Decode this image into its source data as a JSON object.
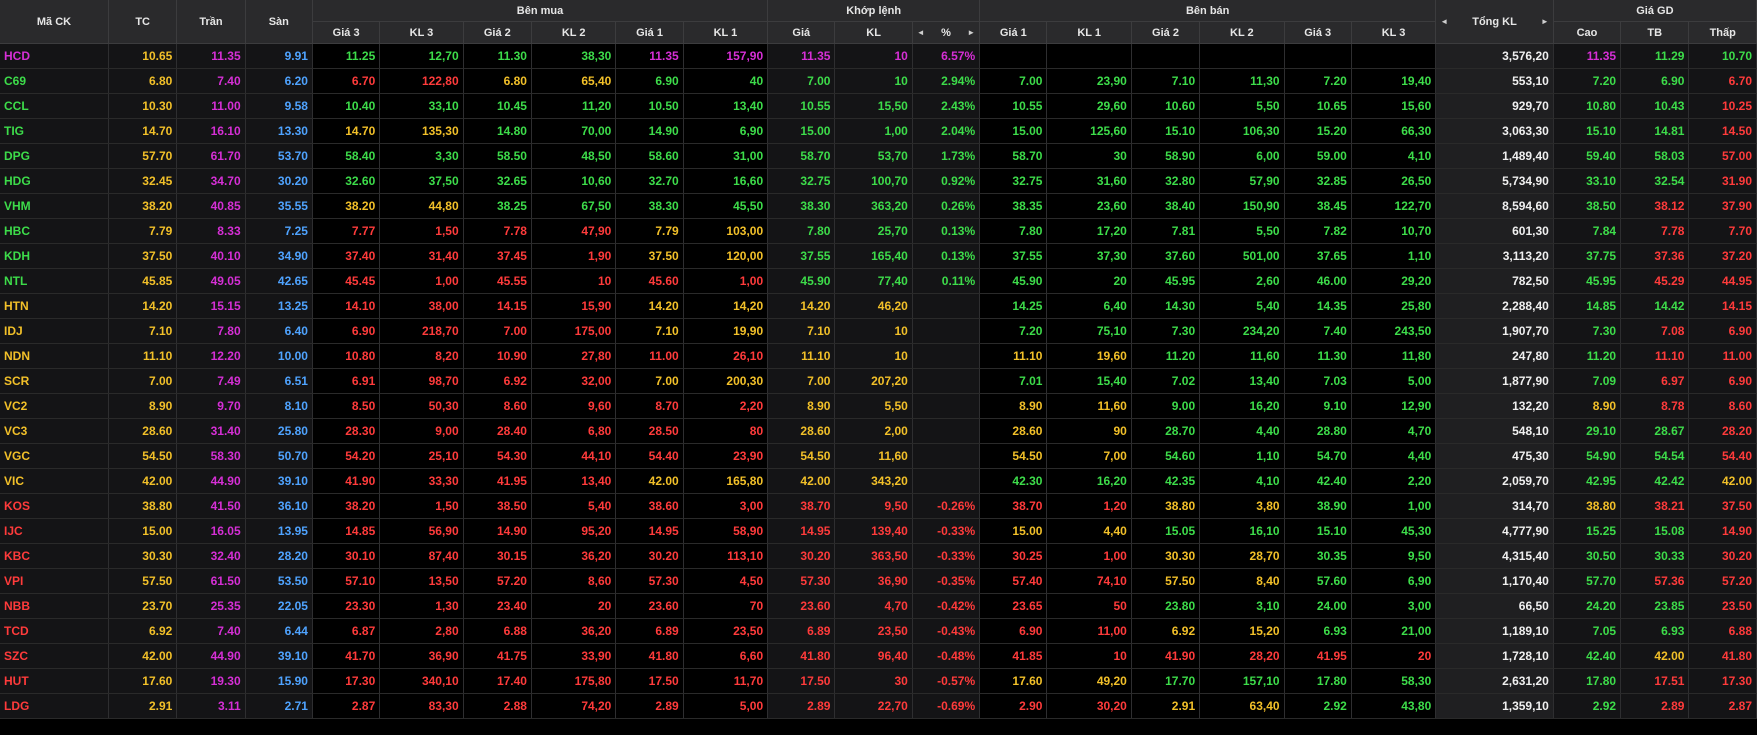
{
  "colors": {
    "green": "#3ddc4a",
    "red": "#ff3b3b",
    "yellow": "#f2c029",
    "purple": "#d62fd6",
    "blue": "#4fa3ff"
  },
  "header": {
    "groups": {
      "buy": "Bên mua",
      "match": "Khớp lệnh",
      "sell": "Bên bán",
      "totals": "Giá GD"
    },
    "cols": {
      "symbol": "Mã CK",
      "ref": "TC",
      "ceil": "Trần",
      "floor": "Sàn",
      "bp3": "Giá 3",
      "bv3": "KL 3",
      "bp2": "Giá 2",
      "bv2": "KL 2",
      "bp1": "Giá 1",
      "bv1": "KL 1",
      "mp": "Giá",
      "mv": "KL",
      "mpct": "%",
      "sp1": "Giá 1",
      "sv1": "KL 1",
      "sp2": "Giá 2",
      "sv2": "KL 2",
      "sp3": "Giá 3",
      "sv3": "KL 3",
      "total": "Tổng KL",
      "high": "Cao",
      "avg": "TB",
      "low": "Thấp"
    },
    "nav_left": "◄",
    "nav_right": "►"
  },
  "rows": [
    {
      "s": "HCD",
      "c": "P",
      "tc": "10.65",
      "tr": "11.35",
      "sa": "9.91",
      "b3": "11.25",
      "b3c": "G",
      "v3": "12,70",
      "b2": "11.30",
      "b2c": "G",
      "v2": "38,30",
      "b1": "11.35",
      "b1c": "P",
      "v1": "157,90",
      "mp": "11.35",
      "mc": "P",
      "mv": "10",
      "pct": "6.57%",
      "s1": "",
      "s1c": "G",
      "w1": "",
      "s2": "",
      "s2c": "G",
      "w2": "",
      "s3": "",
      "s3c": "G",
      "w3": "",
      "tot": "3,576,20",
      "hi": "11.35",
      "hic": "P",
      "av": "11.29",
      "avc": "G",
      "lo": "10.70",
      "loc": "G"
    },
    {
      "s": "C69",
      "c": "G",
      "tc": "6.80",
      "tr": "7.40",
      "sa": "6.20",
      "b3": "6.70",
      "b3c": "R",
      "v3": "122,80",
      "b2": "6.80",
      "b2c": "Y",
      "v2": "65,40",
      "b1": "6.90",
      "b1c": "G",
      "v1": "40",
      "mp": "7.00",
      "mc": "G",
      "mv": "10",
      "pct": "2.94%",
      "s1": "7.00",
      "s1c": "G",
      "w1": "23,90",
      "s2": "7.10",
      "s2c": "G",
      "w2": "11,30",
      "s3": "7.20",
      "s3c": "G",
      "w3": "19,40",
      "tot": "553,10",
      "hi": "7.20",
      "hic": "G",
      "av": "6.90",
      "avc": "G",
      "lo": "6.70",
      "loc": "R"
    },
    {
      "s": "CCL",
      "c": "G",
      "tc": "10.30",
      "tr": "11.00",
      "sa": "9.58",
      "b3": "10.40",
      "b3c": "G",
      "v3": "33,10",
      "b2": "10.45",
      "b2c": "G",
      "v2": "11,20",
      "b1": "10.50",
      "b1c": "G",
      "v1": "13,40",
      "mp": "10.55",
      "mc": "G",
      "mv": "15,50",
      "pct": "2.43%",
      "s1": "10.55",
      "s1c": "G",
      "w1": "29,60",
      "s2": "10.60",
      "s2c": "G",
      "w2": "5,50",
      "s3": "10.65",
      "s3c": "G",
      "w3": "15,60",
      "tot": "929,70",
      "hi": "10.80",
      "hic": "G",
      "av": "10.43",
      "avc": "G",
      "lo": "10.25",
      "loc": "R"
    },
    {
      "s": "TIG",
      "c": "G",
      "tc": "14.70",
      "tr": "16.10",
      "sa": "13.30",
      "b3": "14.70",
      "b3c": "Y",
      "v3": "135,30",
      "b2": "14.80",
      "b2c": "G",
      "v2": "70,00",
      "b1": "14.90",
      "b1c": "G",
      "v1": "6,90",
      "mp": "15.00",
      "mc": "G",
      "mv": "1,00",
      "pct": "2.04%",
      "s1": "15.00",
      "s1c": "G",
      "w1": "125,60",
      "s2": "15.10",
      "s2c": "G",
      "w2": "106,30",
      "s3": "15.20",
      "s3c": "G",
      "w3": "66,30",
      "tot": "3,063,30",
      "hi": "15.10",
      "hic": "G",
      "av": "14.81",
      "avc": "G",
      "lo": "14.50",
      "loc": "R"
    },
    {
      "s": "DPG",
      "c": "G",
      "tc": "57.70",
      "tr": "61.70",
      "sa": "53.70",
      "b3": "58.40",
      "b3c": "G",
      "v3": "3,30",
      "b2": "58.50",
      "b2c": "G",
      "v2": "48,50",
      "b1": "58.60",
      "b1c": "G",
      "v1": "31,00",
      "mp": "58.70",
      "mc": "G",
      "mv": "53,70",
      "pct": "1.73%",
      "s1": "58.70",
      "s1c": "G",
      "w1": "30",
      "s2": "58.90",
      "s2c": "G",
      "w2": "6,00",
      "s3": "59.00",
      "s3c": "G",
      "w3": "4,10",
      "tot": "1,489,40",
      "hi": "59.40",
      "hic": "G",
      "av": "58.03",
      "avc": "G",
      "lo": "57.00",
      "loc": "R"
    },
    {
      "s": "HDG",
      "c": "G",
      "tc": "32.45",
      "tr": "34.70",
      "sa": "30.20",
      "b3": "32.60",
      "b3c": "G",
      "v3": "37,50",
      "b2": "32.65",
      "b2c": "G",
      "v2": "10,60",
      "b1": "32.70",
      "b1c": "G",
      "v1": "16,60",
      "mp": "32.75",
      "mc": "G",
      "mv": "100,70",
      "pct": "0.92%",
      "s1": "32.75",
      "s1c": "G",
      "w1": "31,60",
      "s2": "32.80",
      "s2c": "G",
      "w2": "57,90",
      "s3": "32.85",
      "s3c": "G",
      "w3": "26,50",
      "tot": "5,734,90",
      "hi": "33.10",
      "hic": "G",
      "av": "32.54",
      "avc": "G",
      "lo": "31.90",
      "loc": "R"
    },
    {
      "s": "VHM",
      "c": "G",
      "tc": "38.20",
      "tr": "40.85",
      "sa": "35.55",
      "b3": "38.20",
      "b3c": "Y",
      "v3": "44,80",
      "b2": "38.25",
      "b2c": "G",
      "v2": "67,50",
      "b1": "38.30",
      "b1c": "G",
      "v1": "45,50",
      "mp": "38.30",
      "mc": "G",
      "mv": "363,20",
      "pct": "0.26%",
      "s1": "38.35",
      "s1c": "G",
      "w1": "23,60",
      "s2": "38.40",
      "s2c": "G",
      "w2": "150,90",
      "s3": "38.45",
      "s3c": "G",
      "w3": "122,70",
      "tot": "8,594,60",
      "hi": "38.50",
      "hic": "G",
      "av": "38.12",
      "avc": "R",
      "lo": "37.90",
      "loc": "R"
    },
    {
      "s": "HBC",
      "c": "G",
      "tc": "7.79",
      "tr": "8.33",
      "sa": "7.25",
      "b3": "7.77",
      "b3c": "R",
      "v3": "1,50",
      "b2": "7.78",
      "b2c": "R",
      "v2": "47,90",
      "b1": "7.79",
      "b1c": "Y",
      "v1": "103,00",
      "mp": "7.80",
      "mc": "G",
      "mv": "25,70",
      "pct": "0.13%",
      "s1": "7.80",
      "s1c": "G",
      "w1": "17,20",
      "s2": "7.81",
      "s2c": "G",
      "w2": "5,50",
      "s3": "7.82",
      "s3c": "G",
      "w3": "10,70",
      "tot": "601,30",
      "hi": "7.84",
      "hic": "G",
      "av": "7.78",
      "avc": "R",
      "lo": "7.70",
      "loc": "R"
    },
    {
      "s": "KDH",
      "c": "G",
      "tc": "37.50",
      "tr": "40.10",
      "sa": "34.90",
      "b3": "37.40",
      "b3c": "R",
      "v3": "31,40",
      "b2": "37.45",
      "b2c": "R",
      "v2": "1,90",
      "b1": "37.50",
      "b1c": "Y",
      "v1": "120,00",
      "mp": "37.55",
      "mc": "G",
      "mv": "165,40",
      "pct": "0.13%",
      "s1": "37.55",
      "s1c": "G",
      "w1": "37,30",
      "s2": "37.60",
      "s2c": "G",
      "w2": "501,00",
      "s3": "37.65",
      "s3c": "G",
      "w3": "1,10",
      "tot": "3,113,20",
      "hi": "37.75",
      "hic": "G",
      "av": "37.36",
      "avc": "R",
      "lo": "37.20",
      "loc": "R"
    },
    {
      "s": "NTL",
      "c": "G",
      "tc": "45.85",
      "tr": "49.05",
      "sa": "42.65",
      "b3": "45.45",
      "b3c": "R",
      "v3": "1,00",
      "b2": "45.55",
      "b2c": "R",
      "v2": "10",
      "b1": "45.60",
      "b1c": "R",
      "v1": "1,00",
      "mp": "45.90",
      "mc": "G",
      "mv": "77,40",
      "pct": "0.11%",
      "s1": "45.90",
      "s1c": "G",
      "w1": "20",
      "s2": "45.95",
      "s2c": "G",
      "w2": "2,60",
      "s3": "46.00",
      "s3c": "G",
      "w3": "29,20",
      "tot": "782,50",
      "hi": "45.95",
      "hic": "G",
      "av": "45.29",
      "avc": "R",
      "lo": "44.95",
      "loc": "R"
    },
    {
      "s": "HTN",
      "c": "Y",
      "tc": "14.20",
      "tr": "15.15",
      "sa": "13.25",
      "b3": "14.10",
      "b3c": "R",
      "v3": "38,00",
      "b2": "14.15",
      "b2c": "R",
      "v2": "15,90",
      "b1": "14.20",
      "b1c": "Y",
      "v1": "14,20",
      "mp": "14.20",
      "mc": "Y",
      "mv": "46,20",
      "pct": "",
      "s1": "14.25",
      "s1c": "G",
      "w1": "6,40",
      "s2": "14.30",
      "s2c": "G",
      "w2": "5,40",
      "s3": "14.35",
      "s3c": "G",
      "w3": "25,80",
      "tot": "2,288,40",
      "hi": "14.85",
      "hic": "G",
      "av": "14.42",
      "avc": "G",
      "lo": "14.15",
      "loc": "R"
    },
    {
      "s": "IDJ",
      "c": "Y",
      "tc": "7.10",
      "tr": "7.80",
      "sa": "6.40",
      "b3": "6.90",
      "b3c": "R",
      "v3": "218,70",
      "b2": "7.00",
      "b2c": "R",
      "v2": "175,00",
      "b1": "7.10",
      "b1c": "Y",
      "v1": "19,90",
      "mp": "7.10",
      "mc": "Y",
      "mv": "10",
      "pct": "",
      "s1": "7.20",
      "s1c": "G",
      "w1": "75,10",
      "s2": "7.30",
      "s2c": "G",
      "w2": "234,20",
      "s3": "7.40",
      "s3c": "G",
      "w3": "243,50",
      "tot": "1,907,70",
      "hi": "7.30",
      "hic": "G",
      "av": "7.08",
      "avc": "R",
      "lo": "6.90",
      "loc": "R"
    },
    {
      "s": "NDN",
      "c": "Y",
      "tc": "11.10",
      "tr": "12.20",
      "sa": "10.00",
      "b3": "10.80",
      "b3c": "R",
      "v3": "8,20",
      "b2": "10.90",
      "b2c": "R",
      "v2": "27,80",
      "b1": "11.00",
      "b1c": "R",
      "v1": "26,10",
      "mp": "11.10",
      "mc": "Y",
      "mv": "10",
      "pct": "",
      "s1": "11.10",
      "s1c": "Y",
      "w1": "19,60",
      "s2": "11.20",
      "s2c": "G",
      "w2": "11,60",
      "s3": "11.30",
      "s3c": "G",
      "w3": "11,80",
      "tot": "247,80",
      "hi": "11.20",
      "hic": "G",
      "av": "11.10",
      "avc": "R",
      "lo": "11.00",
      "loc": "R"
    },
    {
      "s": "SCR",
      "c": "Y",
      "tc": "7.00",
      "tr": "7.49",
      "sa": "6.51",
      "b3": "6.91",
      "b3c": "R",
      "v3": "98,70",
      "b2": "6.92",
      "b2c": "R",
      "v2": "32,00",
      "b1": "7.00",
      "b1c": "Y",
      "v1": "200,30",
      "mp": "7.00",
      "mc": "Y",
      "mv": "207,20",
      "pct": "",
      "s1": "7.01",
      "s1c": "G",
      "w1": "15,40",
      "s2": "7.02",
      "s2c": "G",
      "w2": "13,40",
      "s3": "7.03",
      "s3c": "G",
      "w3": "5,00",
      "tot": "1,877,90",
      "hi": "7.09",
      "hic": "G",
      "av": "6.97",
      "avc": "R",
      "lo": "6.90",
      "loc": "R"
    },
    {
      "s": "VC2",
      "c": "Y",
      "tc": "8.90",
      "tr": "9.70",
      "sa": "8.10",
      "b3": "8.50",
      "b3c": "R",
      "v3": "50,30",
      "b2": "8.60",
      "b2c": "R",
      "v2": "9,60",
      "b1": "8.70",
      "b1c": "R",
      "v1": "2,20",
      "mp": "8.90",
      "mc": "Y",
      "mv": "5,50",
      "pct": "",
      "s1": "8.90",
      "s1c": "Y",
      "w1": "11,60",
      "s2": "9.00",
      "s2c": "G",
      "w2": "16,20",
      "s3": "9.10",
      "s3c": "G",
      "w3": "12,90",
      "tot": "132,20",
      "hi": "8.90",
      "hic": "Y",
      "av": "8.78",
      "avc": "R",
      "lo": "8.60",
      "loc": "R"
    },
    {
      "s": "VC3",
      "c": "Y",
      "tc": "28.60",
      "tr": "31.40",
      "sa": "25.80",
      "b3": "28.30",
      "b3c": "R",
      "v3": "9,00",
      "b2": "28.40",
      "b2c": "R",
      "v2": "6,80",
      "b1": "28.50",
      "b1c": "R",
      "v1": "80",
      "mp": "28.60",
      "mc": "Y",
      "mv": "2,00",
      "pct": "",
      "s1": "28.60",
      "s1c": "Y",
      "w1": "90",
      "s2": "28.70",
      "s2c": "G",
      "w2": "4,40",
      "s3": "28.80",
      "s3c": "G",
      "w3": "4,70",
      "tot": "548,10",
      "hi": "29.10",
      "hic": "G",
      "av": "28.67",
      "avc": "G",
      "lo": "28.20",
      "loc": "R"
    },
    {
      "s": "VGC",
      "c": "Y",
      "tc": "54.50",
      "tr": "58.30",
      "sa": "50.70",
      "b3": "54.20",
      "b3c": "R",
      "v3": "25,10",
      "b2": "54.30",
      "b2c": "R",
      "v2": "44,10",
      "b1": "54.40",
      "b1c": "R",
      "v1": "23,90",
      "mp": "54.50",
      "mc": "Y",
      "mv": "11,60",
      "pct": "",
      "s1": "54.50",
      "s1c": "Y",
      "w1": "7,00",
      "s2": "54.60",
      "s2c": "G",
      "w2": "1,10",
      "s3": "54.70",
      "s3c": "G",
      "w3": "4,40",
      "tot": "475,30",
      "hi": "54.90",
      "hic": "G",
      "av": "54.54",
      "avc": "G",
      "lo": "54.40",
      "loc": "R"
    },
    {
      "s": "VIC",
      "c": "Y",
      "tc": "42.00",
      "tr": "44.90",
      "sa": "39.10",
      "b3": "41.90",
      "b3c": "R",
      "v3": "33,30",
      "b2": "41.95",
      "b2c": "R",
      "v2": "13,40",
      "b1": "42.00",
      "b1c": "Y",
      "v1": "165,80",
      "mp": "42.00",
      "mc": "Y",
      "mv": "343,20",
      "pct": "",
      "s1": "42.30",
      "s1c": "G",
      "w1": "16,20",
      "s2": "42.35",
      "s2c": "G",
      "w2": "4,10",
      "s3": "42.40",
      "s3c": "G",
      "w3": "2,20",
      "tot": "2,059,70",
      "hi": "42.95",
      "hic": "G",
      "av": "42.42",
      "avc": "G",
      "lo": "42.00",
      "loc": "Y"
    },
    {
      "s": "KOS",
      "c": "R",
      "tc": "38.80",
      "tr": "41.50",
      "sa": "36.10",
      "b3": "38.20",
      "b3c": "R",
      "v3": "1,50",
      "b2": "38.50",
      "b2c": "R",
      "v2": "5,40",
      "b1": "38.60",
      "b1c": "R",
      "v1": "3,00",
      "mp": "38.70",
      "mc": "R",
      "mv": "9,50",
      "pct": "-0.26%",
      "s1": "38.70",
      "s1c": "R",
      "w1": "1,20",
      "s2": "38.80",
      "s2c": "Y",
      "w2": "3,80",
      "s3": "38.90",
      "s3c": "G",
      "w3": "1,00",
      "tot": "314,70",
      "hi": "38.80",
      "hic": "Y",
      "av": "38.21",
      "avc": "R",
      "lo": "37.50",
      "loc": "R"
    },
    {
      "s": "IJC",
      "c": "R",
      "tc": "15.00",
      "tr": "16.05",
      "sa": "13.95",
      "b3": "14.85",
      "b3c": "R",
      "v3": "56,90",
      "b2": "14.90",
      "b2c": "R",
      "v2": "95,20",
      "b1": "14.95",
      "b1c": "R",
      "v1": "58,90",
      "mp": "14.95",
      "mc": "R",
      "mv": "139,40",
      "pct": "-0.33%",
      "s1": "15.00",
      "s1c": "Y",
      "w1": "4,40",
      "s2": "15.05",
      "s2c": "G",
      "w2": "16,10",
      "s3": "15.10",
      "s3c": "G",
      "w3": "45,30",
      "tot": "4,777,90",
      "hi": "15.25",
      "hic": "G",
      "av": "15.08",
      "avc": "G",
      "lo": "14.90",
      "loc": "R"
    },
    {
      "s": "KBC",
      "c": "R",
      "tc": "30.30",
      "tr": "32.40",
      "sa": "28.20",
      "b3": "30.10",
      "b3c": "R",
      "v3": "87,40",
      "b2": "30.15",
      "b2c": "R",
      "v2": "36,20",
      "b1": "30.20",
      "b1c": "R",
      "v1": "113,10",
      "mp": "30.20",
      "mc": "R",
      "mv": "363,50",
      "pct": "-0.33%",
      "s1": "30.25",
      "s1c": "R",
      "w1": "1,00",
      "s2": "30.30",
      "s2c": "Y",
      "w2": "28,70",
      "s3": "30.35",
      "s3c": "G",
      "w3": "9,50",
      "tot": "4,315,40",
      "hi": "30.50",
      "hic": "G",
      "av": "30.33",
      "avc": "G",
      "lo": "30.20",
      "loc": "R"
    },
    {
      "s": "VPI",
      "c": "R",
      "tc": "57.50",
      "tr": "61.50",
      "sa": "53.50",
      "b3": "57.10",
      "b3c": "R",
      "v3": "13,50",
      "b2": "57.20",
      "b2c": "R",
      "v2": "8,60",
      "b1": "57.30",
      "b1c": "R",
      "v1": "4,50",
      "mp": "57.30",
      "mc": "R",
      "mv": "36,90",
      "pct": "-0.35%",
      "s1": "57.40",
      "s1c": "R",
      "w1": "74,10",
      "s2": "57.50",
      "s2c": "Y",
      "w2": "8,40",
      "s3": "57.60",
      "s3c": "G",
      "w3": "6,90",
      "tot": "1,170,40",
      "hi": "57.70",
      "hic": "G",
      "av": "57.36",
      "avc": "R",
      "lo": "57.20",
      "loc": "R"
    },
    {
      "s": "NBB",
      "c": "R",
      "tc": "23.70",
      "tr": "25.35",
      "sa": "22.05",
      "b3": "23.30",
      "b3c": "R",
      "v3": "1,30",
      "b2": "23.40",
      "b2c": "R",
      "v2": "20",
      "b1": "23.60",
      "b1c": "R",
      "v1": "70",
      "mp": "23.60",
      "mc": "R",
      "mv": "4,70",
      "pct": "-0.42%",
      "s1": "23.65",
      "s1c": "R",
      "w1": "50",
      "s2": "23.80",
      "s2c": "G",
      "w2": "3,10",
      "s3": "24.00",
      "s3c": "G",
      "w3": "3,00",
      "tot": "66,50",
      "hi": "24.20",
      "hic": "G",
      "av": "23.85",
      "avc": "G",
      "lo": "23.50",
      "loc": "R"
    },
    {
      "s": "TCD",
      "c": "R",
      "tc": "6.92",
      "tr": "7.40",
      "sa": "6.44",
      "b3": "6.87",
      "b3c": "R",
      "v3": "2,80",
      "b2": "6.88",
      "b2c": "R",
      "v2": "36,20",
      "b1": "6.89",
      "b1c": "R",
      "v1": "23,50",
      "mp": "6.89",
      "mc": "R",
      "mv": "23,50",
      "pct": "-0.43%",
      "s1": "6.90",
      "s1c": "R",
      "w1": "11,00",
      "s2": "6.92",
      "s2c": "Y",
      "w2": "15,20",
      "s3": "6.93",
      "s3c": "G",
      "w3": "21,00",
      "tot": "1,189,10",
      "hi": "7.05",
      "hic": "G",
      "av": "6.93",
      "avc": "G",
      "lo": "6.88",
      "loc": "R"
    },
    {
      "s": "SZC",
      "c": "R",
      "tc": "42.00",
      "tr": "44.90",
      "sa": "39.10",
      "b3": "41.70",
      "b3c": "R",
      "v3": "36,90",
      "b2": "41.75",
      "b2c": "R",
      "v2": "33,90",
      "b1": "41.80",
      "b1c": "R",
      "v1": "6,60",
      "mp": "41.80",
      "mc": "R",
      "mv": "96,40",
      "pct": "-0.48%",
      "s1": "41.85",
      "s1c": "R",
      "w1": "10",
      "s2": "41.90",
      "s2c": "R",
      "w2": "28,20",
      "s3": "41.95",
      "s3c": "R",
      "w3": "20",
      "tot": "1,728,10",
      "hi": "42.40",
      "hic": "G",
      "av": "42.00",
      "avc": "Y",
      "lo": "41.80",
      "loc": "R"
    },
    {
      "s": "HUT",
      "c": "R",
      "tc": "17.60",
      "tr": "19.30",
      "sa": "15.90",
      "b3": "17.30",
      "b3c": "R",
      "v3": "340,10",
      "b2": "17.40",
      "b2c": "R",
      "v2": "175,80",
      "b1": "17.50",
      "b1c": "R",
      "v1": "11,70",
      "mp": "17.50",
      "mc": "R",
      "mv": "30",
      "pct": "-0.57%",
      "s1": "17.60",
      "s1c": "Y",
      "w1": "49,20",
      "s2": "17.70",
      "s2c": "G",
      "w2": "157,10",
      "s3": "17.80",
      "s3c": "G",
      "w3": "58,30",
      "tot": "2,631,20",
      "hi": "17.80",
      "hic": "G",
      "av": "17.51",
      "avc": "R",
      "lo": "17.30",
      "loc": "R"
    },
    {
      "s": "LDG",
      "c": "R",
      "tc": "2.91",
      "tr": "3.11",
      "sa": "2.71",
      "b3": "2.87",
      "b3c": "R",
      "v3": "83,30",
      "b2": "2.88",
      "b2c": "R",
      "v2": "74,20",
      "b1": "2.89",
      "b1c": "R",
      "v1": "5,00",
      "mp": "2.89",
      "mc": "R",
      "mv": "22,70",
      "pct": "-0.69%",
      "s1": "2.90",
      "s1c": "R",
      "w1": "30,20",
      "s2": "2.91",
      "s2c": "Y",
      "w2": "63,40",
      "s3": "2.92",
      "s3c": "G",
      "w3": "43,80",
      "tot": "1,359,10",
      "hi": "2.92",
      "hic": "G",
      "av": "2.89",
      "avc": "R",
      "lo": "2.87",
      "loc": "R"
    }
  ]
}
